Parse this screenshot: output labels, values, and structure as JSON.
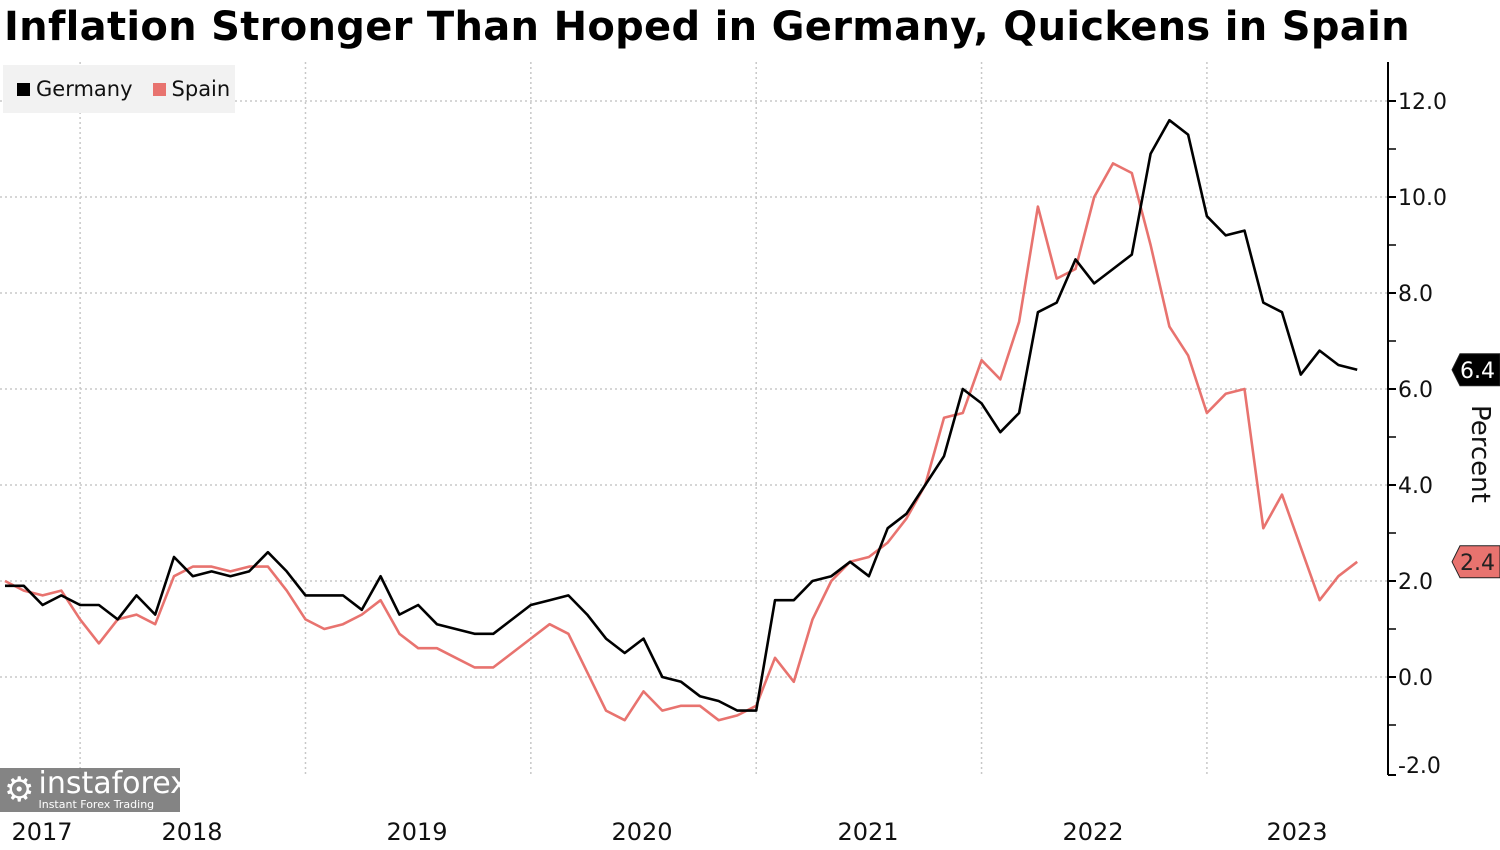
{
  "chart_data": {
    "type": "line",
    "title": "Inflation Stronger Than Hoped in Germany, Quickens in Spain",
    "ylabel": "Percent",
    "xlabel": "",
    "ylim": [
      -2.0,
      12.7
    ],
    "yticks": [
      "-2.0",
      "0.0",
      "2.0",
      "4.0",
      "6.0",
      "8.0",
      "10.0",
      "12.0"
    ],
    "ytick_values": [
      -2,
      0,
      2,
      4,
      6,
      8,
      10,
      12
    ],
    "xtick_labels": [
      "2017",
      "2018",
      "2019",
      "2020",
      "2021",
      "2022",
      "2023"
    ],
    "grid": true,
    "legend_position": "top-left",
    "x_start": "2017-09",
    "x_end": "2023-09",
    "series": [
      {
        "name": "Germany",
        "color": "#000000",
        "last_label": "6.4",
        "values": [
          1.9,
          1.9,
          1.5,
          1.7,
          1.5,
          1.5,
          1.2,
          1.7,
          1.3,
          2.5,
          2.1,
          2.2,
          2.1,
          2.2,
          2.6,
          2.2,
          1.7,
          1.7,
          1.7,
          1.4,
          2.1,
          1.3,
          1.5,
          1.1,
          1.0,
          0.9,
          0.9,
          1.2,
          1.5,
          1.6,
          1.7,
          1.3,
          0.8,
          0.5,
          0.8,
          0.0,
          -0.1,
          -0.4,
          -0.5,
          -0.7,
          -0.7,
          1.6,
          1.6,
          2.0,
          2.1,
          2.4,
          2.1,
          3.1,
          3.4,
          4.0,
          4.6,
          6.0,
          5.7,
          5.1,
          5.5,
          7.6,
          7.8,
          8.7,
          8.2,
          8.5,
          8.8,
          10.9,
          11.6,
          11.3,
          9.6,
          9.2,
          9.3,
          7.8,
          7.6,
          6.3,
          6.8,
          6.5,
          6.4
        ]
      },
      {
        "name": "Spain",
        "color": "#e8736f",
        "last_label": "2.4",
        "values": [
          2.0,
          1.8,
          1.7,
          1.8,
          1.2,
          0.7,
          1.2,
          1.3,
          1.1,
          2.1,
          2.3,
          2.3,
          2.2,
          2.3,
          2.3,
          1.8,
          1.2,
          1.0,
          1.1,
          1.3,
          1.6,
          0.9,
          0.6,
          0.6,
          0.4,
          0.2,
          0.2,
          0.5,
          0.8,
          1.1,
          0.9,
          0.1,
          -0.7,
          -0.9,
          -0.3,
          -0.7,
          -0.6,
          -0.6,
          -0.9,
          -0.8,
          -0.6,
          0.4,
          -0.1,
          1.2,
          2.0,
          2.4,
          2.5,
          2.8,
          3.3,
          4.0,
          5.4,
          5.5,
          6.6,
          6.2,
          7.4,
          9.8,
          8.3,
          8.5,
          10.0,
          10.7,
          10.5,
          9.0,
          7.3,
          6.7,
          5.5,
          5.9,
          6.0,
          3.1,
          3.8,
          2.7,
          1.6,
          2.1,
          2.4
        ]
      }
    ]
  },
  "watermark": {
    "name": "instaforex",
    "tagline": "Instant Forex Trading"
  }
}
